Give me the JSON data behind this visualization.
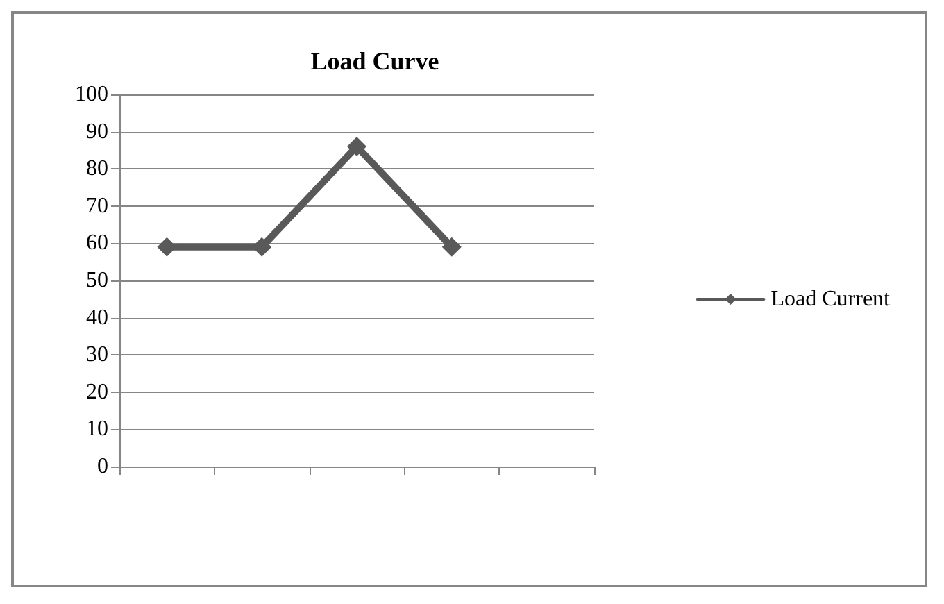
{
  "chart_data": {
    "type": "line",
    "title": "Load Curve",
    "categories": [
      null,
      null,
      null,
      null,
      null
    ],
    "series": [
      {
        "name": "Load Current",
        "color": "#595959",
        "values": [
          59,
          59,
          86,
          59,
          null
        ]
      }
    ],
    "ylim": [
      0,
      100
    ],
    "yticks": [
      0,
      10,
      20,
      30,
      40,
      50,
      60,
      70,
      80,
      90,
      100
    ],
    "grid": "y",
    "legend": "right",
    "marker": "diamond",
    "line_style": "solid"
  }
}
